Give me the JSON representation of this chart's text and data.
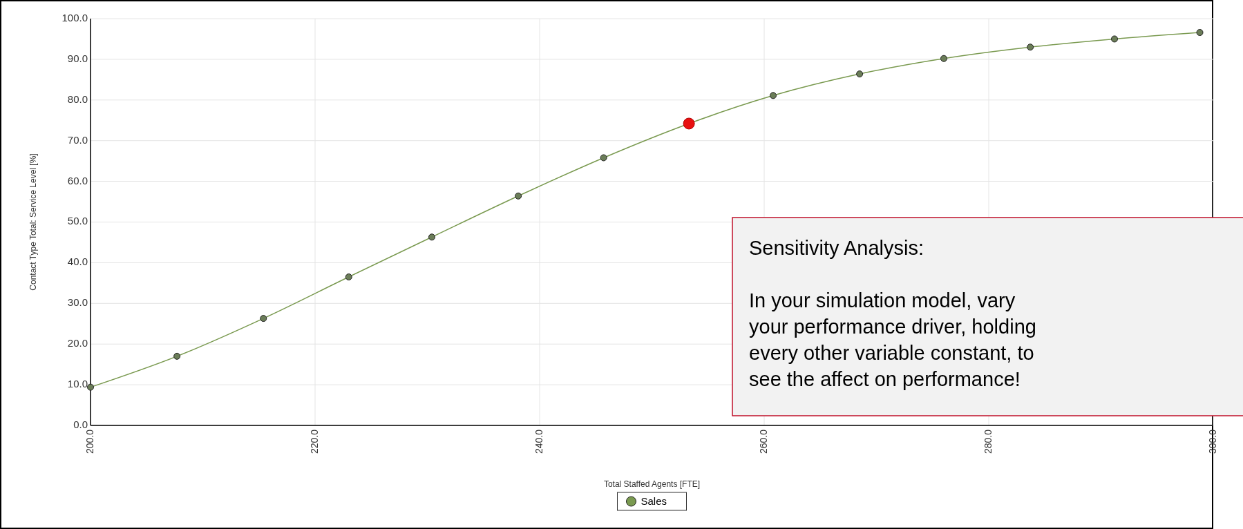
{
  "chart_data": {
    "type": "line",
    "xlabel": "Total Staffed Agents [FTE]",
    "ylabel": "Contact Type Total: Service Level [%]",
    "x": [
      200,
      207.7,
      215.4,
      223.0,
      230.4,
      238.1,
      245.7,
      253.3,
      260.8,
      268.5,
      276.0,
      283.7,
      291.2,
      298.8
    ],
    "series": [
      {
        "name": "Sales",
        "color": "#7a9a50",
        "values": [
          9.4,
          17.0,
          26.3,
          36.5,
          46.3,
          56.4,
          65.8,
          74.2,
          81.1,
          86.4,
          90.2,
          93.0,
          95.0,
          96.6
        ],
        "colors": [
          "#6b7d58",
          "#6b7d58",
          "#6b7d58",
          "#6b7d58",
          "#6b7d58",
          "#6b7d58",
          "#6b7d58",
          "#e81010",
          "#6b7d58",
          "#6b7d58",
          "#6b7d58",
          "#6b7d58",
          "#6b7d58",
          "#6b7d58"
        ]
      }
    ],
    "xlim": [
      200,
      300
    ],
    "xticks": [
      {
        "value": 200,
        "label": "200.0"
      },
      {
        "value": 220,
        "label": "220.0"
      },
      {
        "value": 240,
        "label": "240.0"
      },
      {
        "value": 260,
        "label": "260.0"
      },
      {
        "value": 280,
        "label": "280.0"
      },
      {
        "value": 300,
        "label": "300.0"
      }
    ],
    "ylim": [
      0,
      100
    ],
    "yticks": [
      {
        "value": 0,
        "label": "0.0"
      },
      {
        "value": 10,
        "label": "10.0"
      },
      {
        "value": 20,
        "label": "20.0"
      },
      {
        "value": 30,
        "label": "30.0"
      },
      {
        "value": 40,
        "label": "40.0"
      },
      {
        "value": 50,
        "label": "50.0"
      },
      {
        "value": 60,
        "label": "60.0"
      },
      {
        "value": 70,
        "label": "70.0"
      },
      {
        "value": 80,
        "label": "80.0"
      },
      {
        "value": 90,
        "label": "90.0"
      },
      {
        "value": 100,
        "label": "100.0"
      }
    ],
    "grid": true,
    "legend": "bottom",
    "marker": "circle",
    "line_style": "solid",
    "annotations": [
      "Sensitivity Analysis:",
      "In your simulation model, vary your performance driver, holding every other variable constant, to see the affect on performance!"
    ]
  }
}
